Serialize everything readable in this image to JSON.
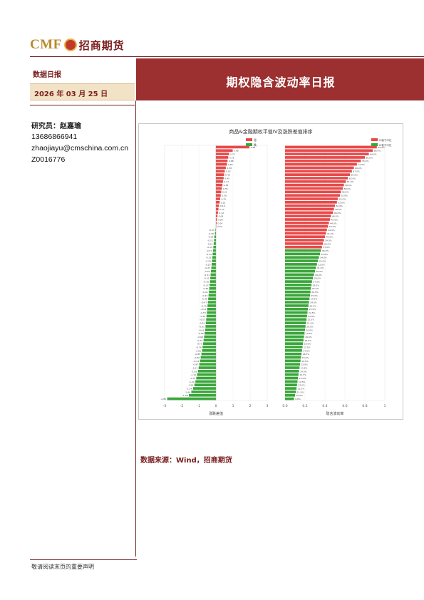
{
  "header": {
    "logo_latin": "CMF",
    "logo_chinese": "招商期货",
    "report_type": "数据日报",
    "date": "2026 年 03 月 25 日",
    "title": "期权隐含波动率日报"
  },
  "analyst": {
    "label": "研究员：赵嘉瑜",
    "phone": "13686866941",
    "email": "zhaojiayu@cmschina.com.cn",
    "license": "Z0016776"
  },
  "source": "数据来源：Wind，招商期货",
  "footer": "敬请阅读末页的重要声明",
  "colors": {
    "brand_red": "#9c2f2f",
    "positive_bar": "#e84a4a",
    "negative_bar": "#3aa63a"
  },
  "chart_data": {
    "type": "bar",
    "title": "商品&金融期权平值IV及涨跌差值排序",
    "left_panel": {
      "orientation": "horizontal",
      "xlabel": "涨跌差值",
      "xlim": [
        -3,
        3
      ],
      "xticks": [
        "-3",
        "-2",
        "-1",
        "0",
        "1",
        "2",
        "3"
      ],
      "legend": [
        "涨",
        "跌"
      ],
      "values": [
        1.96,
        0.98,
        0.77,
        0.72,
        0.68,
        0.64,
        0.58,
        0.52,
        0.48,
        0.45,
        0.41,
        0.38,
        0.35,
        0.31,
        0.28,
        0.25,
        0.22,
        0.18,
        0.15,
        0.12,
        0.09,
        0.06,
        0.04,
        0.02,
        -0.03,
        -0.06,
        -0.09,
        -0.11,
        -0.13,
        -0.15,
        -0.17,
        -0.19,
        -0.21,
        -0.23,
        -0.25,
        -0.27,
        -0.29,
        -0.31,
        -0.33,
        -0.35,
        -0.37,
        -0.39,
        -0.41,
        -0.43,
        -0.45,
        -0.47,
        -0.49,
        -0.51,
        -0.53,
        -0.55,
        -0.57,
        -0.59,
        -0.61,
        -0.63,
        -0.66,
        -0.69,
        -0.72,
        -0.75,
        -0.78,
        -0.81,
        -0.85,
        -0.89,
        -0.93,
        -0.97,
        -1.01,
        -1.05,
        -1.1,
        -1.15,
        -1.2,
        -1.26,
        -1.34,
        -1.44,
        -1.58,
        -2.85
      ]
    },
    "right_panel": {
      "orientation": "horizontal",
      "xlabel": "隐含波动率",
      "xticks": [
        "0.0",
        "0.2",
        "0.4",
        "0.6",
        "0.8",
        "1"
      ],
      "xlim": [
        0,
        1
      ],
      "legend": [
        "IV高于中位",
        "IV低于中位"
      ],
      "values": [
        0.92,
        0.88,
        0.84,
        0.8,
        0.76,
        0.72,
        0.69,
        0.67,
        0.65,
        0.63,
        0.61,
        0.59,
        0.58,
        0.56,
        0.55,
        0.53,
        0.52,
        0.5,
        0.49,
        0.48,
        0.46,
        0.45,
        0.44,
        0.43,
        0.42,
        0.41,
        0.4,
        0.39,
        0.38,
        0.37,
        0.36,
        0.35,
        0.34,
        0.33,
        0.32,
        0.31,
        0.3,
        0.29,
        0.28,
        0.27,
        0.265,
        0.26,
        0.255,
        0.25,
        0.245,
        0.24,
        0.235,
        0.23,
        0.225,
        0.22,
        0.215,
        0.21,
        0.205,
        0.2,
        0.195,
        0.19,
        0.185,
        0.18,
        0.175,
        0.17,
        0.165,
        0.16,
        0.155,
        0.15,
        0.145,
        0.14,
        0.135,
        0.13,
        0.125,
        0.12,
        0.115,
        0.11,
        0.1,
        0.09
      ]
    }
  }
}
